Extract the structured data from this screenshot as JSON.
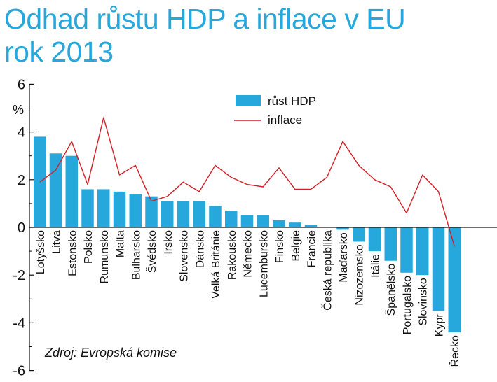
{
  "header": {
    "title_line1": "Odhad růstu HDP a inflace v EU",
    "title_line2": "rok 2013"
  },
  "colors": {
    "title": "#27a8dd",
    "bars": "#27a8dd",
    "line": "#d41f26"
  },
  "chart_data": {
    "type": "bar",
    "title": "Odhad růstu HDP a inflace v EU rok 2013",
    "unit_label": "%",
    "ylim": [
      -6,
      6
    ],
    "yticks": [
      "6",
      "4",
      "2",
      "0",
      "-2",
      "-4",
      "-6"
    ],
    "source": "Zdroj: Evropská komise",
    "legend_placement": "top-center",
    "categories": [
      "Lotyšsko",
      "Litva",
      "Estonsko",
      "Polsko",
      "Rumunsko",
      "Malta",
      "Bulharsko",
      "Švédsko",
      "Irsko",
      "Slovensko",
      "Dánsko",
      "Velká Británie",
      "Rakousko",
      "Německo",
      "Lucembursko",
      "Finsko",
      "Belgie",
      "Francie",
      "Česká republika",
      "Maďarsko",
      "Nizozemsko",
      "Itálie",
      "Španělsko",
      "Portugalsko",
      "Slovinsko",
      "Kypr",
      "Řecko"
    ],
    "series": [
      {
        "name": "růst HDP",
        "kind": "bar",
        "values": [
          3.8,
          3.1,
          3.0,
          1.6,
          1.6,
          1.5,
          1.4,
          1.3,
          1.1,
          1.1,
          1.1,
          0.9,
          0.7,
          0.5,
          0.5,
          0.3,
          0.2,
          0.1,
          0.0,
          -0.1,
          -0.6,
          -1.0,
          -1.4,
          -1.9,
          -2.0,
          -3.5,
          -4.4
        ]
      },
      {
        "name": "inflace",
        "kind": "line",
        "values": [
          1.9,
          2.4,
          3.6,
          1.8,
          4.6,
          2.2,
          2.6,
          1.1,
          1.3,
          1.9,
          1.5,
          2.6,
          2.1,
          1.8,
          1.7,
          2.5,
          1.6,
          1.6,
          2.1,
          3.6,
          2.6,
          2.0,
          1.7,
          0.6,
          2.2,
          1.5,
          -0.8
        ]
      }
    ]
  }
}
